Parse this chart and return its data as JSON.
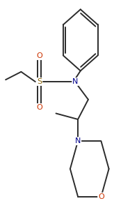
{
  "background_color": "#ffffff",
  "line_color": "#2b2b2b",
  "atom_colors": {
    "S": "#8B6508",
    "N": "#00008B",
    "O": "#CC3300"
  },
  "figsize": [
    1.87,
    2.88
  ],
  "dpi": 100
}
